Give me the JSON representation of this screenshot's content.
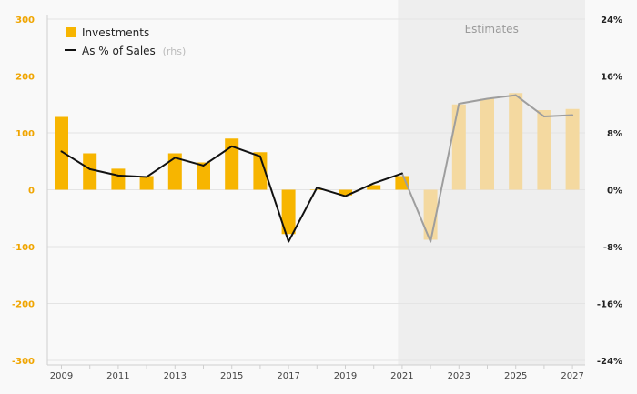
{
  "chart_data": {
    "type": "bar",
    "categories": [
      "2009",
      "2010",
      "2011",
      "2012",
      "2013",
      "2014",
      "2015",
      "2016",
      "2017",
      "2018",
      "2019",
      "2020",
      "2021",
      "2022",
      "2023",
      "2024",
      "2025",
      "2026",
      "2027"
    ],
    "x_tick_labels": [
      "2009",
      "2011",
      "2013",
      "2015",
      "2017",
      "2019",
      "2021",
      "2023",
      "2025",
      "2027"
    ],
    "series": [
      {
        "name": "Investments",
        "type": "bar",
        "axis": "left",
        "values": [
          128,
          64,
          37,
          24,
          64,
          48,
          90,
          66,
          -78,
          0,
          -10,
          8,
          24,
          -88,
          150,
          160,
          170,
          140,
          142
        ],
        "color": "#f7b500",
        "estimate_color": "#f4d9a0"
      },
      {
        "name": "As % of Sales",
        "legend_suffix": "(rhs)",
        "type": "line",
        "axis": "right",
        "values": [
          5.4,
          2.9,
          2.0,
          1.8,
          4.5,
          3.4,
          6.1,
          4.7,
          -7.3,
          0.3,
          -0.9,
          0.9,
          2.3,
          -7.3,
          12.1,
          12.8,
          13.3,
          10.3,
          10.5
        ],
        "color": "#111111",
        "estimate_color": "#9e9e9e"
      }
    ],
    "y_left": {
      "ylim": [
        -300,
        300
      ],
      "ticks": [
        "300",
        "200",
        "100",
        "0",
        "-100",
        "-200",
        "-300"
      ]
    },
    "y_right": {
      "ylim": [
        -24,
        24
      ],
      "ticks": [
        "24%",
        "16%",
        "8%",
        "0%",
        "-8%",
        "-16%",
        "-24%"
      ]
    },
    "estimates": {
      "label": "Estimates",
      "start_index": 13,
      "shade_color": "#eeeeee"
    },
    "legend_position": "top-left",
    "grid": true
  }
}
